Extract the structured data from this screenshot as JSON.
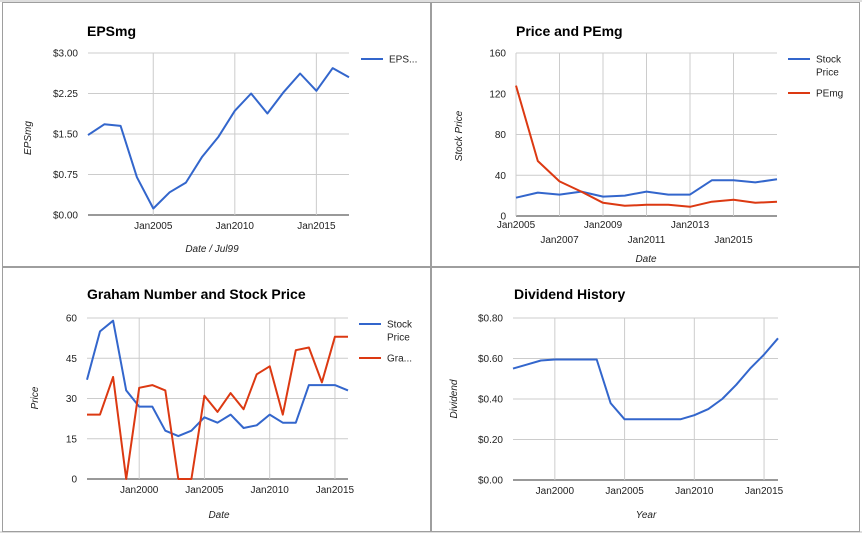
{
  "chart_data": [
    {
      "type": "line",
      "title": "EPSmg",
      "xlabel": "Date / Jul99",
      "ylabel": "EPSmg",
      "ylim": [
        0,
        3
      ],
      "yticks": [
        "$0.00",
        "$0.75",
        "$1.50",
        "$2.25",
        "$3.00"
      ],
      "ytick_values": [
        0,
        0.75,
        1.5,
        2.25,
        3.0
      ],
      "xlim": [
        2001,
        2017
      ],
      "xticks": [
        "Jan2005",
        "Jan2010",
        "Jan2015"
      ],
      "xtick_values": [
        2005,
        2010,
        2015
      ],
      "legend_position": "right",
      "grid": true,
      "series": [
        {
          "name": "EPS...",
          "color": "#3366cc",
          "x": [
            2001,
            2002,
            2003,
            2004,
            2005,
            2006,
            2007,
            2008,
            2009,
            2010,
            2011,
            2012,
            2013,
            2014,
            2015,
            2016,
            2017
          ],
          "values": [
            1.48,
            1.68,
            1.65,
            0.7,
            0.12,
            0.42,
            0.6,
            1.08,
            1.45,
            1.93,
            2.25,
            1.88,
            2.28,
            2.62,
            2.3,
            2.72,
            2.55
          ]
        }
      ]
    },
    {
      "type": "line",
      "title": "Price and PEmg",
      "xlabel": "Date",
      "ylabel": "Stock Price",
      "ylim": [
        0,
        160
      ],
      "yticks": [
        "0",
        "40",
        "80",
        "120",
        "160"
      ],
      "ytick_values": [
        0,
        40,
        80,
        120,
        160
      ],
      "xlim": [
        2005,
        2017
      ],
      "xticks_upper": [
        "Jan2005",
        "Jan2009",
        "Jan2013"
      ],
      "xticks_upper_values": [
        2005,
        2009,
        2013
      ],
      "xticks_lower": [
        "Jan2007",
        "Jan2011",
        "Jan2015"
      ],
      "xticks_lower_values": [
        2007,
        2011,
        2015
      ],
      "legend_position": "right",
      "grid": true,
      "series": [
        {
          "name": "Stock Price",
          "name_lines": [
            "Stock",
            "Price"
          ],
          "color": "#3366cc",
          "x": [
            2005,
            2006,
            2007,
            2008,
            2009,
            2010,
            2011,
            2012,
            2013,
            2014,
            2015,
            2016,
            2017
          ],
          "values": [
            18,
            23,
            21,
            24,
            19,
            20,
            24,
            21,
            21,
            35,
            35,
            33,
            36
          ]
        },
        {
          "name": "PEmg",
          "color": "#dc3912",
          "x": [
            2005,
            2006,
            2007,
            2008,
            2009,
            2010,
            2011,
            2012,
            2013,
            2014,
            2015,
            2016,
            2017
          ],
          "values": [
            128,
            54,
            34,
            24,
            13,
            10,
            11,
            11,
            9,
            14,
            16,
            13,
            14
          ]
        }
      ]
    },
    {
      "type": "line",
      "title": "Graham Number and Stock Price",
      "xlabel": "Date",
      "ylabel": "Price",
      "ylim": [
        0,
        60
      ],
      "yticks": [
        "0",
        "15",
        "30",
        "45",
        "60"
      ],
      "ytick_values": [
        0,
        15,
        30,
        45,
        60
      ],
      "xlim": [
        1996,
        2016
      ],
      "xticks": [
        "Jan2000",
        "Jan2005",
        "Jan2010",
        "Jan2015"
      ],
      "xtick_values": [
        2000,
        2005,
        2010,
        2015
      ],
      "legend_position": "right",
      "grid": true,
      "series": [
        {
          "name": "Stock Price",
          "name_lines": [
            "Stock",
            "Price"
          ],
          "color": "#3366cc",
          "x": [
            1996,
            1997,
            1998,
            1999,
            2000,
            2001,
            2002,
            2003,
            2004,
            2005,
            2006,
            2007,
            2008,
            2009,
            2010,
            2011,
            2012,
            2013,
            2014,
            2015,
            2016
          ],
          "values": [
            37,
            55,
            59,
            33,
            27,
            27,
            18,
            16,
            18,
            23,
            21,
            24,
            19,
            20,
            24,
            21,
            21,
            35,
            35,
            35,
            33
          ]
        },
        {
          "name": "Gra...",
          "color": "#dc3912",
          "x": [
            1996,
            1997,
            1998,
            1999,
            2000,
            2001,
            2002,
            2003,
            2004,
            2005,
            2006,
            2007,
            2008,
            2009,
            2010,
            2011,
            2012,
            2013,
            2014,
            2015,
            2016
          ],
          "values": [
            24,
            24,
            38,
            0,
            34,
            35,
            33,
            0,
            0,
            31,
            25,
            32,
            26,
            39,
            42,
            24,
            48,
            49,
            36,
            53,
            53
          ]
        }
      ]
    },
    {
      "type": "line",
      "title": "Dividend History",
      "xlabel": "Year",
      "ylabel": "Dividend",
      "ylim": [
        0,
        0.8
      ],
      "yticks": [
        "$0.00",
        "$0.20",
        "$0.40",
        "$0.60",
        "$0.80"
      ],
      "ytick_values": [
        0,
        0.2,
        0.4,
        0.6,
        0.8
      ],
      "xlim": [
        1997,
        2016
      ],
      "xticks": [
        "Jan2000",
        "Jan2005",
        "Jan2010",
        "Jan2015"
      ],
      "xtick_values": [
        2000,
        2005,
        2010,
        2015
      ],
      "legend_position": "none",
      "grid": true,
      "series": [
        {
          "name": "",
          "color": "#3366cc",
          "x": [
            1997,
            1998,
            1999,
            2000,
            2001,
            2002,
            2003,
            2004,
            2005,
            2006,
            2007,
            2008,
            2009,
            2010,
            2011,
            2012,
            2013,
            2014,
            2015,
            2016
          ],
          "values": [
            0.55,
            0.57,
            0.59,
            0.595,
            0.595,
            0.595,
            0.595,
            0.38,
            0.3,
            0.3,
            0.3,
            0.3,
            0.3,
            0.32,
            0.35,
            0.4,
            0.47,
            0.55,
            0.62,
            0.7
          ]
        }
      ]
    }
  ]
}
